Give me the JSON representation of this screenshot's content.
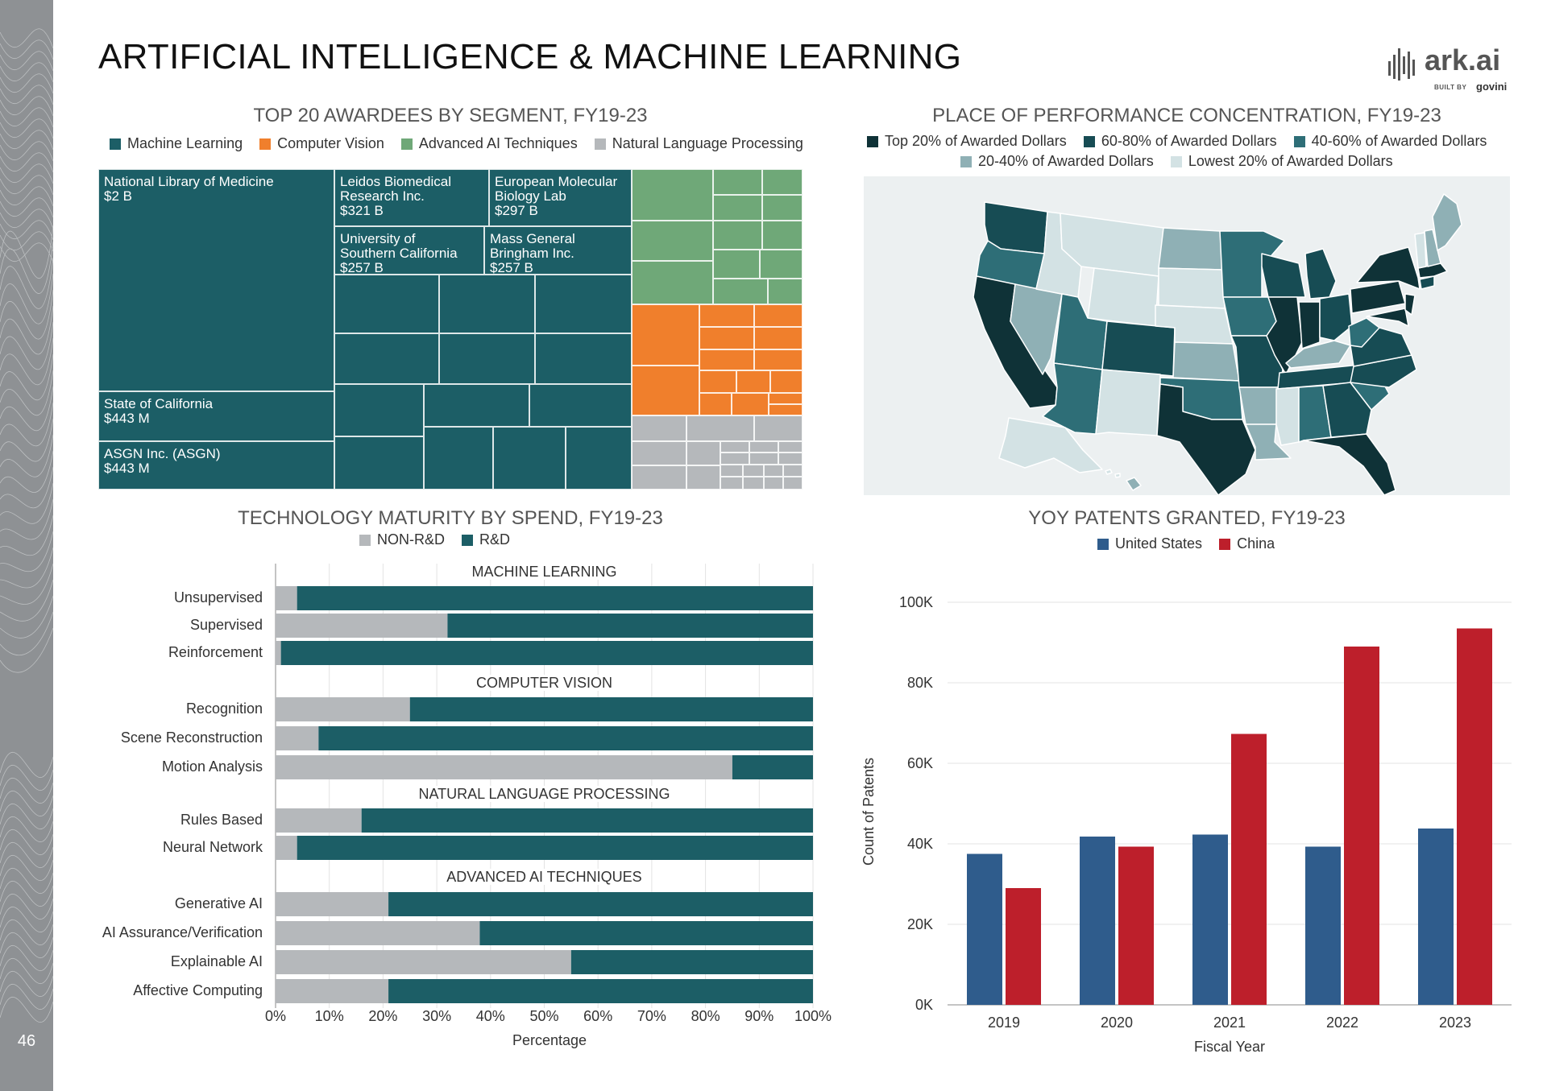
{
  "page": {
    "number": "46"
  },
  "title": "ARTIFICIAL INTELLIGENCE & MACHINE LEARNING",
  "logo": {
    "wordmark": "ark.ai",
    "built_by": "BUILT BY",
    "partner": "govini"
  },
  "colors": {
    "teal": "#1c5e66",
    "orange": "#f07f2c",
    "green": "#6fa878",
    "gray": "#b5b8bb",
    "blue": "#2f5c8c",
    "red": "#bd1f2b",
    "map_q1": "#0f3237",
    "map_q2": "#174c54",
    "map_q3": "#2e6e77",
    "map_q4": "#8fb0b5",
    "map_q5": "#d3e2e4"
  },
  "treemap": {
    "title": "TOP 20 AWARDEES BY SEGMENT, FY19-23",
    "legend": [
      "Machine Learning",
      "Computer Vision",
      "Advanced AI Techniques",
      "Natural Language Processing"
    ],
    "labels": {
      "nlm": "National Library of Medicine\n$2 B",
      "ca": "State of California\n$443 M",
      "asgn": "ASGN Inc. (ASGN)\n$443 M",
      "leidos": "Leidos Biomedical\nResearch Inc.\n$321 B",
      "embl": "European Molecular\nBiology Lab\n$297 B",
      "usc": "University of\nSouthern California\n$257 B",
      "mgb": "Mass General\nBringham Inc.\n$257 B"
    }
  },
  "map": {
    "title": "PLACE OF PERFORMANCE CONCENTRATION, FY19-23",
    "legend": [
      "Top 20% of Awarded Dollars",
      "60-80% of Awarded Dollars",
      "40-60% of Awarded Dollars",
      "20-40% of Awarded Dollars",
      "Lowest 20% of Awarded Dollars"
    ]
  },
  "maturity": {
    "title": "TECHNOLOGY MATURITY BY SPEND, FY19-23",
    "legend": [
      "NON-R&D",
      "R&D"
    ],
    "xlabel": "Percentage"
  },
  "patents": {
    "title": "YOY PATENTS GRANTED, FY19-23",
    "legend": [
      "United States",
      "China"
    ]
  },
  "chart_data": [
    {
      "type": "bar",
      "orientation": "horizontal",
      "stacked": true,
      "title": "TECHNOLOGY MATURITY BY SPEND, FY19-23",
      "xlabel": "Percentage",
      "xlim": [
        0,
        100
      ],
      "xticks": [
        "0%",
        "10%",
        "20%",
        "30%",
        "40%",
        "50%",
        "60%",
        "70%",
        "80%",
        "90%",
        "100%"
      ],
      "legend_position": "top",
      "series_names": [
        "NON-R&D",
        "R&D"
      ],
      "groups": [
        {
          "name": "MACHINE LEARNING",
          "categories": [
            "Unsupervised",
            "Supervised",
            "Reinforcement"
          ],
          "non_rd": [
            4,
            32,
            1
          ]
        },
        {
          "name": "COMPUTER VISION",
          "categories": [
            "Recognition",
            "Scene Reconstruction",
            "Motion Analysis"
          ],
          "non_rd": [
            25,
            8,
            85
          ]
        },
        {
          "name": "NATURAL LANGUAGE PROCESSING",
          "categories": [
            "Rules Based",
            "Neural Network"
          ],
          "non_rd": [
            16,
            4
          ]
        },
        {
          "name": "ADVANCED AI TECHNIQUES",
          "categories": [
            "Generative AI",
            "AI Assurance/Verification",
            "Explainable AI",
            "Affective Computing"
          ],
          "non_rd": [
            21,
            38,
            55,
            21
          ]
        }
      ]
    },
    {
      "type": "bar",
      "title": "YOY PATENTS GRANTED, FY19-23",
      "xlabel": "Fiscal Year",
      "ylabel": "Count of Patents",
      "ylim": [
        0,
        100000
      ],
      "yticks": [
        "0K",
        "20K",
        "40K",
        "60K",
        "80K",
        "100K"
      ],
      "grid": true,
      "legend_position": "top",
      "categories": [
        "2019",
        "2020",
        "2021",
        "2022",
        "2023"
      ],
      "series": [
        {
          "name": "United States",
          "values": [
            37500,
            41800,
            42300,
            39300,
            43800
          ]
        },
        {
          "name": "China",
          "values": [
            29000,
            39300,
            67300,
            89000,
            93500
          ]
        }
      ]
    }
  ]
}
